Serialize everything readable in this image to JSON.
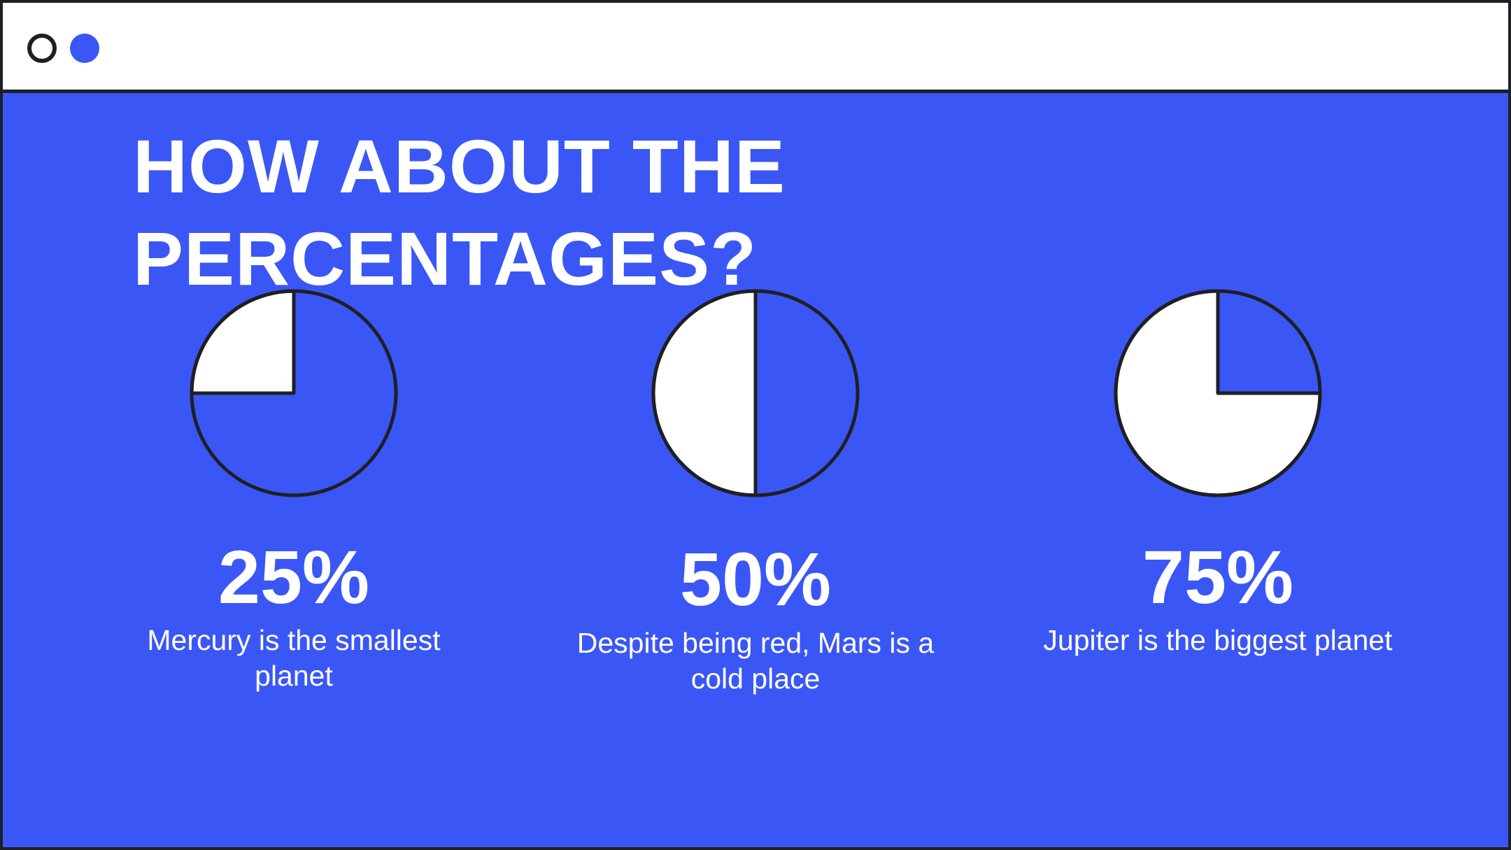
{
  "slide": {
    "title_line1": "HOW ABOUT THE",
    "title_line2": "PERCENTAGES?"
  },
  "colors": {
    "background": "#3a57f5",
    "pie_filled": "#ffffff",
    "outline": "#1f1f24"
  },
  "chart_data": [
    {
      "type": "pie",
      "value": 25,
      "label": "25%",
      "description": "Mercury is the smallest planet"
    },
    {
      "type": "pie",
      "value": 50,
      "label": "50%",
      "description": "Despite being red, Mars is a cold place"
    },
    {
      "type": "pie",
      "value": 75,
      "label": "75%",
      "description": "Jupiter is the biggest planet"
    }
  ]
}
